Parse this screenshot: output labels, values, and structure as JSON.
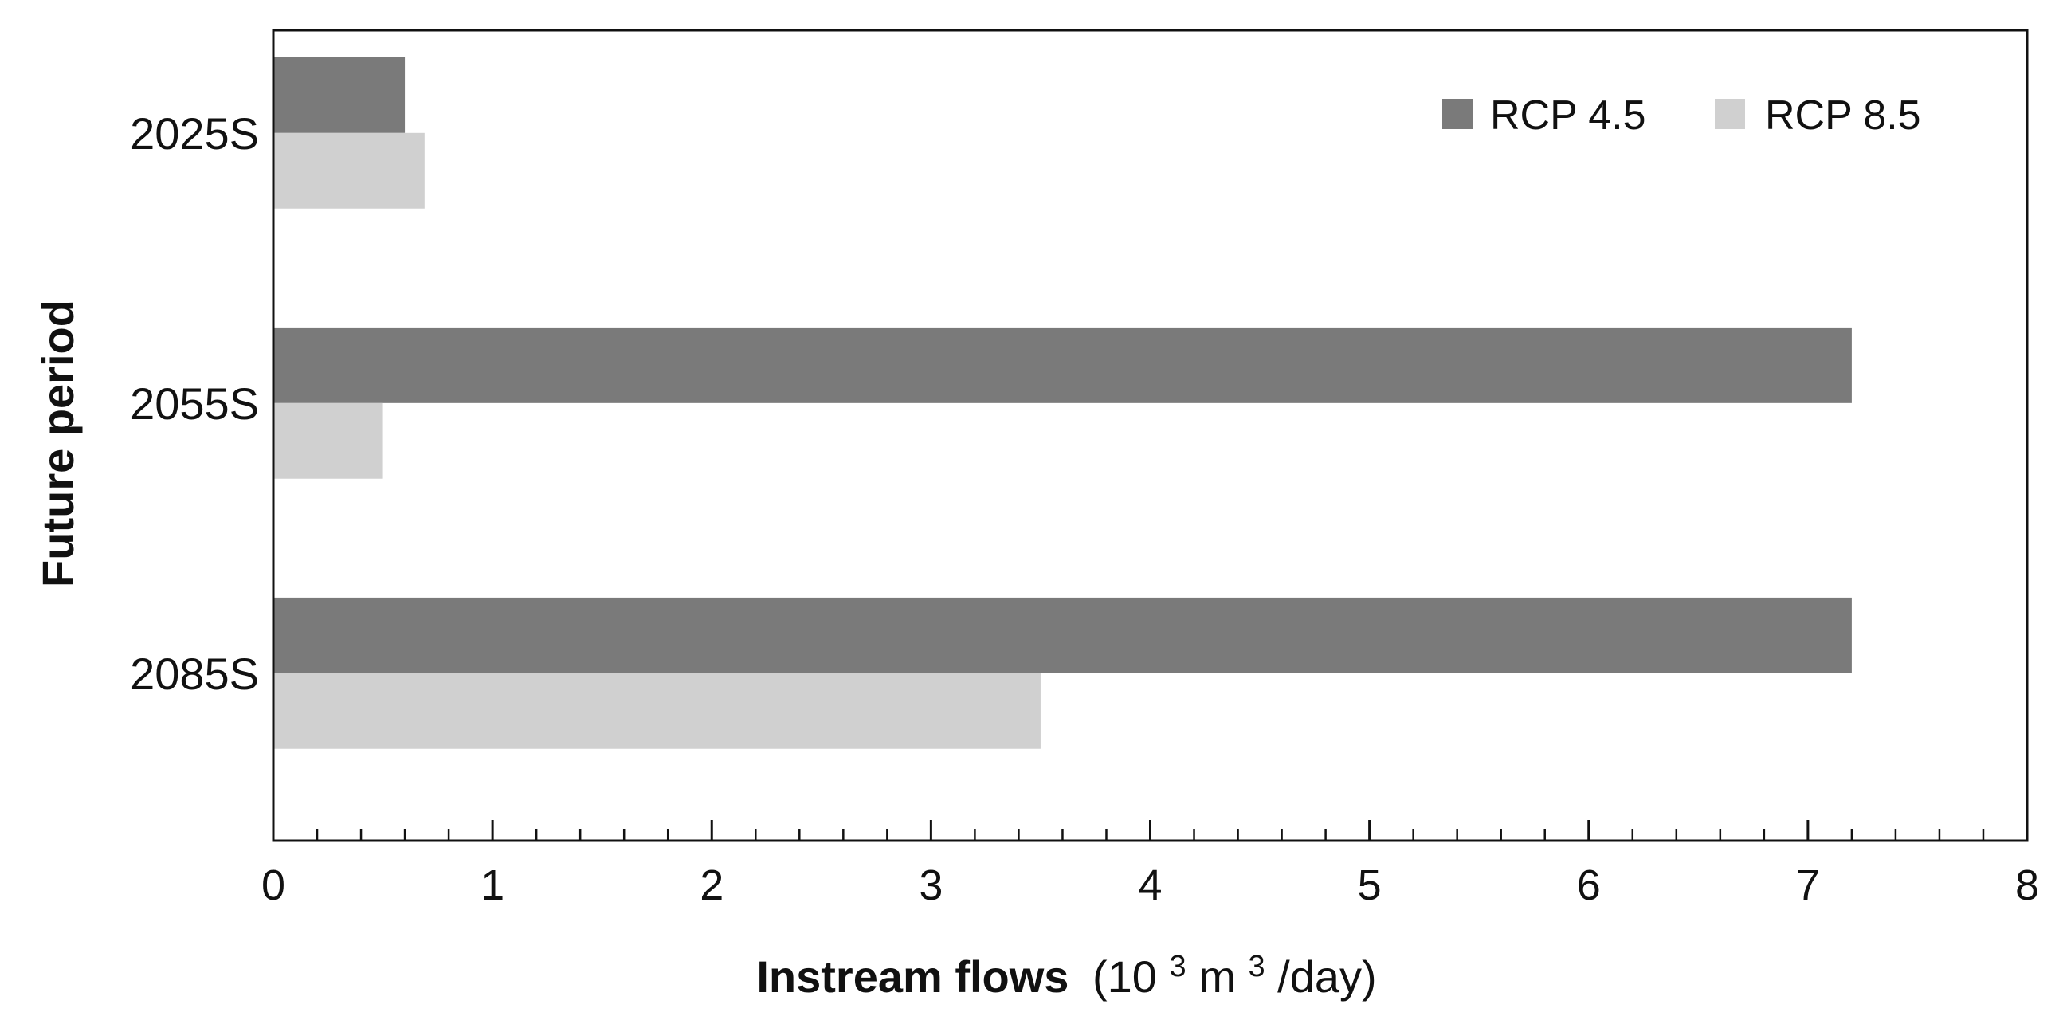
{
  "chart_data": {
    "type": "bar",
    "orientation": "horizontal",
    "categories": [
      "2025S",
      "2055S",
      "2085S"
    ],
    "series": [
      {
        "name": "RCP 4.5",
        "values": [
          0.6,
          7.2,
          7.2
        ],
        "color": "#7a7a7a"
      },
      {
        "name": "RCP 8.5",
        "values": [
          0.69,
          0.5,
          3.5
        ],
        "color": "#d0d0d0"
      }
    ],
    "xlabel": {
      "bold": "Instream flows",
      "open": "(10",
      "sup1": "3",
      "mid": " m",
      "sup2": "3",
      "close": "/day)"
    },
    "ylabel": "Future period",
    "xlim": [
      0,
      8
    ],
    "x_ticks": [
      "0",
      "1",
      "2",
      "3",
      "4",
      "5",
      "6",
      "7",
      "8"
    ],
    "grid": false,
    "legend_position": "top-right"
  }
}
